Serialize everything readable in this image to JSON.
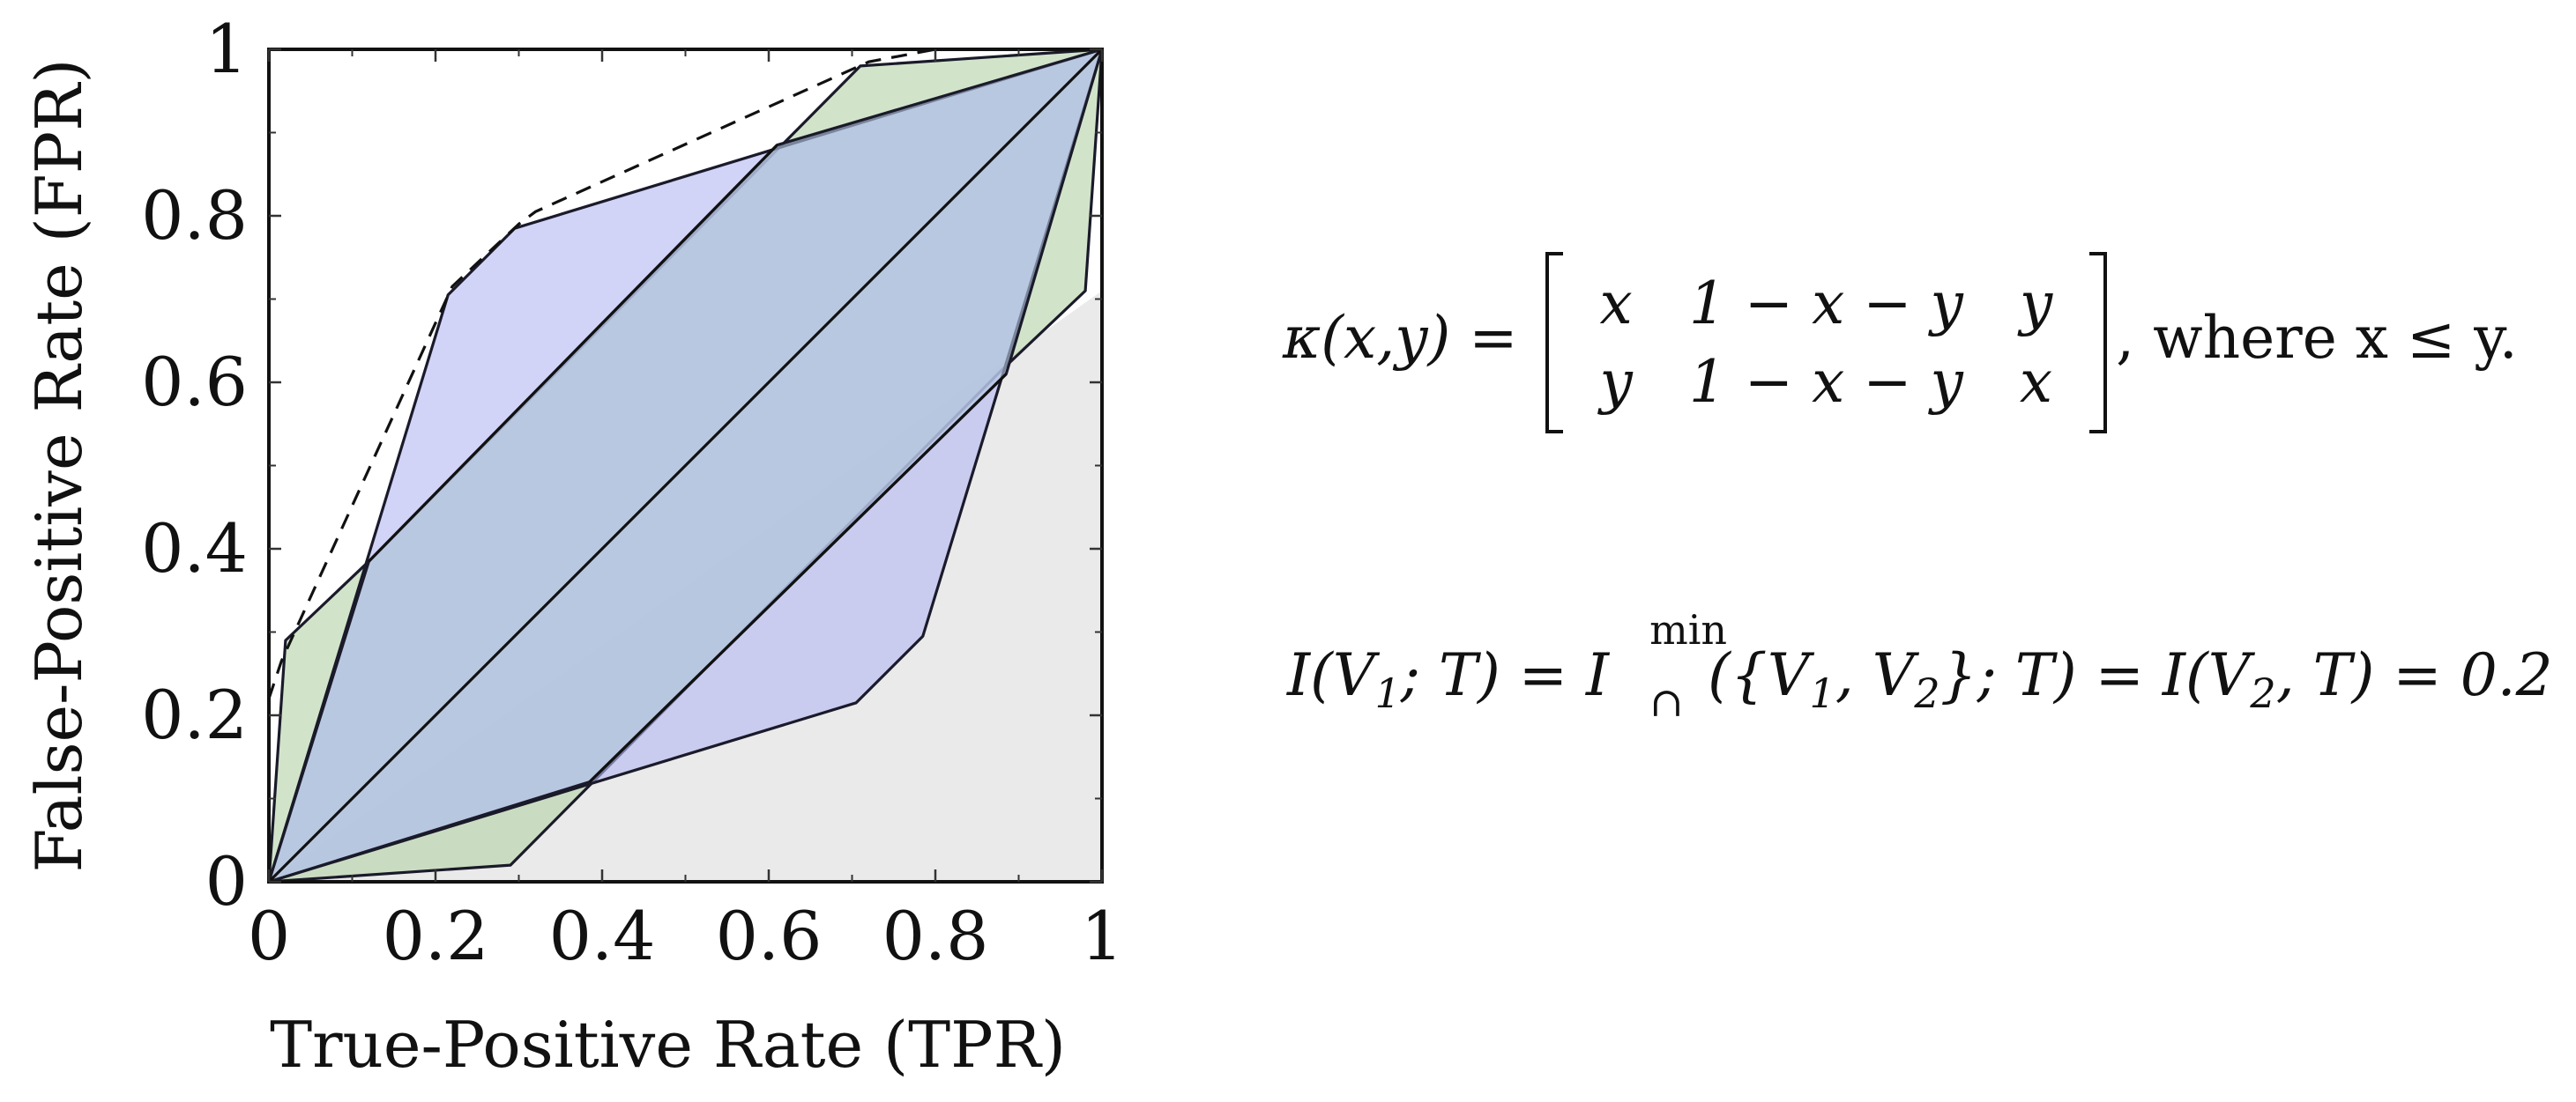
{
  "chart_data": {
    "type": "area",
    "xlabel": "True-Positive Rate (TPR)",
    "ylabel": "False-Positive Rate (FPR)",
    "xlim": [
      0,
      1
    ],
    "ylim": [
      0,
      1
    ],
    "x_ticks": [
      "0",
      "0.2",
      "0.4",
      "0.6",
      "0.8",
      "1"
    ],
    "y_ticks": [
      "0",
      "0.2",
      "0.4",
      "0.6",
      "0.8",
      "1"
    ],
    "grid": false,
    "series": [
      {
        "color": "#eaeaea",
        "points": [
          [
            0,
            0
          ],
          [
            1,
            0.71
          ],
          [
            1,
            0
          ]
        ]
      },
      {
        "color": "#b4d4a8",
        "points": [
          [
            0,
            0
          ],
          [
            0.02,
            0.29
          ],
          [
            0.12,
            0.385
          ],
          [
            0.71,
            0.98
          ],
          [
            1,
            1
          ],
          [
            0.98,
            0.71
          ],
          [
            0.88,
            0.615
          ],
          [
            0.29,
            0.02
          ]
        ]
      },
      {
        "color": "#b4b8f2",
        "points": [
          [
            0,
            0
          ],
          [
            0.215,
            0.705
          ],
          [
            0.295,
            0.785
          ],
          [
            1,
            1
          ],
          [
            0.785,
            0.295
          ],
          [
            0.705,
            0.215
          ]
        ]
      },
      {
        "color": "#b4c8e0",
        "points": [
          [
            0,
            0
          ],
          [
            0.12,
            0.385
          ],
          [
            0.61,
            0.885
          ],
          [
            1,
            1
          ],
          [
            0.885,
            0.61
          ],
          [
            0.385,
            0.12
          ]
        ]
      },
      {
        "style": "dashed",
        "points": [
          [
            0,
            0.22
          ],
          [
            0.015,
            0.265
          ],
          [
            0.04,
            0.32
          ],
          [
            0.22,
            0.715
          ],
          [
            0.3,
            0.79
          ],
          [
            0.32,
            0.805
          ],
          [
            0.72,
            0.985
          ],
          [
            0.8,
            1
          ]
        ]
      },
      {
        "points": [
          [
            0,
            0
          ],
          [
            1,
            1
          ]
        ]
      },
      {
        "points": [
          [
            0.12,
            0.385
          ],
          [
            0.61,
            0.885
          ]
        ]
      },
      {
        "points": [
          [
            0.385,
            0.12
          ],
          [
            0.885,
            0.61
          ]
        ]
      }
    ]
  },
  "formulas": {
    "kappa": {
      "lhs_name": "κ",
      "lhs_args": "(x,y) =",
      "matrix": [
        [
          "x",
          "1 − x − y",
          "y"
        ],
        [
          "y",
          "1 − x − y",
          "x"
        ]
      ],
      "rhs": ", where x ≤ y."
    },
    "info": {
      "left": "I(V",
      "sub1": "1",
      "mid1": "; T) = I",
      "op_sup": "min",
      "op_sub": "∩",
      "mid2": "({V",
      "sub2": "1",
      "mid3": ", V",
      "sub3": "2",
      "mid4": "}; T) = I(V",
      "sub4": "2",
      "right": ", T) = 0.2"
    }
  }
}
